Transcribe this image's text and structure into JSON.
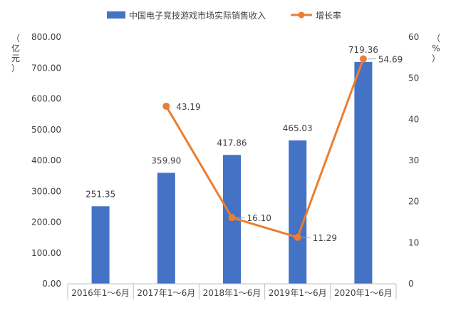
{
  "chart_data": {
    "type": "bar",
    "categories": [
      "2016年1～6月",
      "2017年1～6月",
      "2018年1～6月",
      "2019年1～6月",
      "2020年1～6月"
    ],
    "series": [
      {
        "name": "中国电子竞技游戏市场实际销售收入",
        "type": "bar",
        "axis": "left",
        "color": "#4472C4",
        "values": [
          251.35,
          359.9,
          417.86,
          465.03,
          719.36
        ],
        "labels": [
          "251.35",
          "359.90",
          "417.86",
          "465.03",
          "719.36"
        ]
      },
      {
        "name": "增长率",
        "type": "line",
        "axis": "right",
        "color": "#ED7D31",
        "values": [
          null,
          43.19,
          16.1,
          11.29,
          54.69
        ],
        "labels": [
          "",
          "43.19",
          "16.10",
          "11.29",
          "54.69"
        ]
      }
    ],
    "y_left": {
      "label": [
        "（",
        "亿",
        "元",
        "）"
      ],
      "ylim": [
        0,
        800
      ],
      "ticks": [
        "0.00",
        "100.00",
        "200.00",
        "300.00",
        "400.00",
        "500.00",
        "600.00",
        "700.00",
        "800.00"
      ]
    },
    "y_right": {
      "label": [
        "（",
        "%",
        "）"
      ],
      "ylim": [
        0,
        60
      ],
      "ticks": [
        "0",
        "10",
        "20",
        "30",
        "40",
        "50",
        "60"
      ]
    },
    "grid": false,
    "legend_position": "top"
  }
}
